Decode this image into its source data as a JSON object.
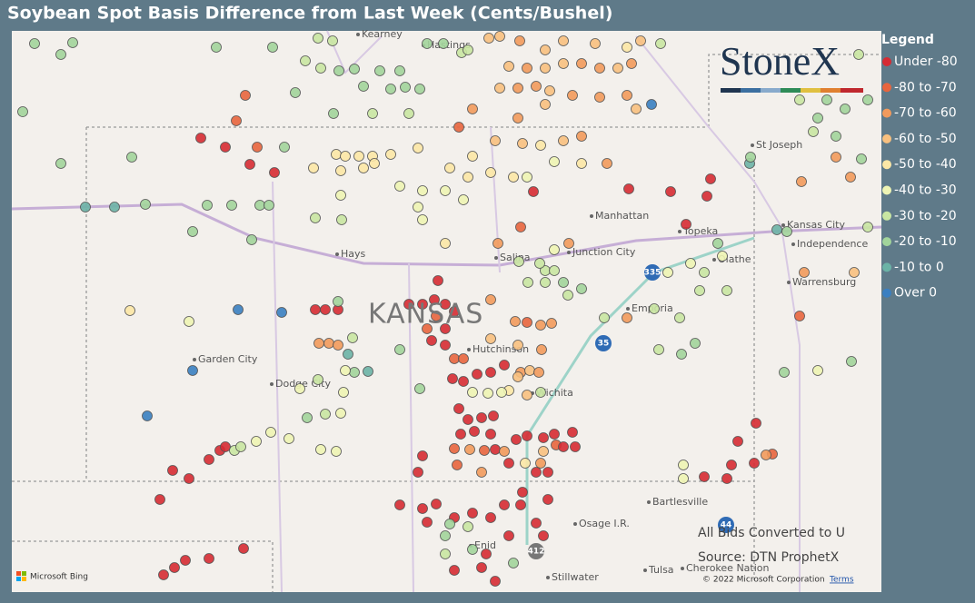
{
  "header": {
    "title": "Soybean Spot Basis Difference from Last Week (Cents/Bushel)"
  },
  "legend": {
    "title": "Legend",
    "items": [
      {
        "label": "Under -80",
        "color": "#d62b33"
      },
      {
        "label": "-80 to -70",
        "color": "#e8653e"
      },
      {
        "label": "-70 to -60",
        "color": "#f29a5c"
      },
      {
        "label": "-60 to -50",
        "color": "#f8c07f"
      },
      {
        "label": "-50 to -40",
        "color": "#fce7a6"
      },
      {
        "label": "-40 to -30",
        "color": "#eef4b4"
      },
      {
        "label": "-30 to -20",
        "color": "#c9e6a2"
      },
      {
        "label": "-20 to -10",
        "color": "#a2d49b"
      },
      {
        "label": "-10 to 0",
        "color": "#6bb3a6"
      },
      {
        "label": "Over 0",
        "color": "#3a7fc1"
      }
    ]
  },
  "map": {
    "places": [
      "Kearney",
      "Hastings",
      "St Joseph",
      "Manhattan",
      "Topeka",
      "Kansas City",
      "Independence",
      "Hays",
      "Salina",
      "Junction City",
      "Olathe",
      "Warrensburg",
      "Emporia",
      "Hutchinson",
      "Garden City",
      "Dodge City",
      "Wichita",
      "Bartlesville",
      "Osage I.R.",
      "Enid",
      "Stillwater",
      "Tulsa",
      "Cherokee Nation"
    ],
    "state": "KANSAS",
    "shields": [
      "335",
      "35",
      "44",
      "412"
    ],
    "logo": "StoneX",
    "bing": "Microsoft Bing",
    "copyright": "© 2022 Microsoft Corporation",
    "terms": "Terms"
  },
  "notes": [
    "All Bids Converted to U",
    "Source: DTN ProphetX"
  ]
}
